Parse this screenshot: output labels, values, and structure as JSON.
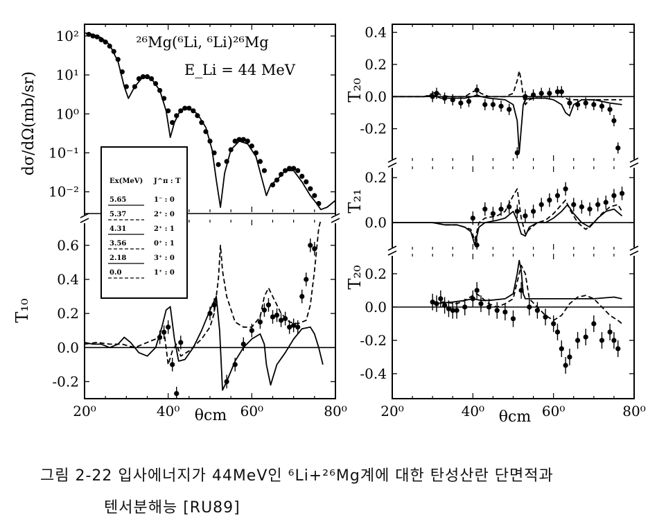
{
  "caption": {
    "line1": "그림 2-22 입사에너지가 44MeV인 ⁶Li+²⁶Mg계에 대한 탄성산란 단면적과",
    "line2": "텐서분해능 [RU89]"
  },
  "chart_data": [
    {
      "id": "cross_section",
      "type": "line",
      "title": "²⁶Mg(⁶Li, ⁶Li)²⁶Mg",
      "subtitle": "E_Li = 44 MeV",
      "ylabel": "dσ/dΩ(mb/sr)",
      "xlim": [
        20,
        80
      ],
      "ylim": [
        0.003,
        200
      ],
      "yscale": "log",
      "ytick_labels": [
        "10²",
        "10¹",
        "10⁰",
        "10⁻¹",
        "10⁻²"
      ],
      "ytick_values": [
        100,
        10,
        1,
        0.1,
        0.01
      ],
      "series": [
        {
          "style": "solid",
          "x": [
            20,
            22,
            24,
            26,
            28,
            29.5,
            30.5,
            32,
            34,
            36,
            38,
            39.5,
            40.5,
            41.5,
            43,
            45,
            47,
            49,
            50.5,
            51.5,
            52.5,
            53.5,
            55,
            57,
            59,
            61,
            62.5,
            63.5,
            64.5,
            66,
            68,
            70,
            72,
            74,
            75.5,
            76.5,
            78,
            80
          ],
          "y": [
            120,
            110,
            90,
            60,
            22,
            5,
            2.5,
            5,
            9,
            8,
            4,
            1.2,
            0.25,
            0.6,
            1.3,
            1.4,
            1.0,
            0.45,
            0.12,
            0.02,
            0.004,
            0.03,
            0.12,
            0.2,
            0.17,
            0.08,
            0.02,
            0.008,
            0.015,
            0.02,
            0.035,
            0.035,
            0.018,
            0.008,
            0.005,
            0.0035,
            0.004,
            0.006
          ]
        },
        {
          "style": "points",
          "x": [
            21,
            22,
            23,
            24,
            25,
            26,
            27,
            28,
            29,
            30,
            32,
            33,
            34,
            35,
            36,
            37,
            38,
            39,
            40,
            41,
            42,
            43,
            44,
            45,
            46,
            47,
            48,
            49,
            50,
            51,
            52,
            54,
            55,
            56,
            57,
            58,
            59,
            60,
            61,
            62,
            63,
            65,
            66,
            67,
            68,
            69,
            70,
            71,
            72,
            73,
            74,
            75,
            76
          ],
          "y": [
            110,
            100,
            95,
            80,
            70,
            55,
            40,
            25,
            12,
            5,
            5,
            8,
            9,
            9,
            8,
            6,
            4,
            2.5,
            1.2,
            0.6,
            0.9,
            1.2,
            1.4,
            1.4,
            1.2,
            0.9,
            0.6,
            0.35,
            0.2,
            0.1,
            0.05,
            0.06,
            0.12,
            0.2,
            0.22,
            0.22,
            0.2,
            0.15,
            0.1,
            0.06,
            0.035,
            0.015,
            0.02,
            0.028,
            0.035,
            0.04,
            0.04,
            0.035,
            0.025,
            0.018,
            0.012,
            0.008,
            0.005
          ]
        }
      ]
    },
    {
      "id": "legend_table",
      "type": "table",
      "columns": [
        "Ex(MeV)",
        "J^π : T"
      ],
      "rows": [
        [
          "5.65",
          "1⁻ : 0"
        ],
        [
          "5.37",
          "2⁺ : 0"
        ],
        [
          "4.31",
          "2⁺ : 1"
        ],
        [
          "3.56",
          "0⁺ : 1"
        ],
        [
          "2.18",
          "3⁺ : 0"
        ],
        [
          "0.0",
          "1⁺ : 0"
        ]
      ]
    },
    {
      "id": "T10",
      "type": "line",
      "ylabel": "T₁₀",
      "xlabel": "θcm",
      "xlim": [
        20,
        80
      ],
      "ylim": [
        -0.3,
        0.75
      ],
      "ytick_labels": [
        "0.6",
        "0.4",
        "0.2",
        "0.0",
        "-0.2"
      ],
      "ytick_values": [
        0.6,
        0.4,
        0.2,
        0.0,
        -0.2
      ],
      "xtick_labels": [
        "20⁰",
        "40⁰",
        "60⁰",
        "80⁰"
      ],
      "xtick_values": [
        20,
        40,
        60,
        80
      ],
      "series": [
        {
          "style": "solid",
          "x": [
            20,
            22,
            24,
            26,
            28,
            29.5,
            31,
            33,
            35,
            37,
            38.5,
            39.5,
            40.5,
            41.5,
            42.5,
            44,
            46,
            48,
            50,
            51.5,
            52.3,
            53,
            54,
            56,
            58,
            60,
            62,
            63,
            63.5,
            64.5,
            66,
            68,
            70,
            72,
            74,
            75,
            76,
            77
          ],
          "y": [
            0.03,
            0.02,
            0.02,
            0.0,
            0.02,
            0.06,
            0.03,
            -0.03,
            -0.05,
            0.0,
            0.12,
            0.22,
            0.24,
            0.05,
            -0.08,
            -0.07,
            0.0,
            0.1,
            0.22,
            0.3,
            0.1,
            -0.25,
            -0.2,
            -0.08,
            0.0,
            0.05,
            0.08,
            0.02,
            -0.1,
            -0.22,
            -0.1,
            -0.03,
            0.05,
            0.11,
            0.12,
            0.08,
            0.0,
            -0.1
          ]
        },
        {
          "style": "dashed",
          "x": [
            20,
            23,
            26,
            29,
            32,
            35,
            37,
            39,
            40,
            41,
            42,
            43,
            45,
            48,
            50,
            51,
            52,
            52.5,
            53,
            54,
            56,
            58,
            60,
            62,
            63,
            64,
            65,
            67,
            69,
            71,
            73,
            74,
            75,
            76,
            77
          ],
          "y": [
            0.02,
            0.03,
            0.02,
            0.02,
            0.0,
            0.03,
            0.05,
            0.1,
            -0.1,
            -0.02,
            0.02,
            -0.05,
            -0.02,
            0.05,
            0.12,
            0.2,
            0.4,
            0.6,
            0.45,
            0.3,
            0.15,
            0.12,
            0.12,
            0.18,
            0.3,
            0.35,
            0.3,
            0.2,
            0.15,
            0.14,
            0.16,
            0.25,
            0.45,
            0.7,
            0.8
          ]
        },
        {
          "style": "points",
          "x": [
            38,
            39,
            40,
            41,
            42,
            43,
            50,
            51,
            54,
            56,
            58,
            60,
            62,
            63,
            64,
            65,
            66,
            67,
            68,
            69,
            70,
            71,
            72,
            73,
            74,
            75
          ],
          "y": [
            0.06,
            0.09,
            0.12,
            -0.1,
            -0.27,
            0.03,
            0.2,
            0.25,
            -0.2,
            -0.1,
            0.02,
            0.1,
            0.15,
            0.22,
            0.25,
            0.18,
            0.19,
            0.16,
            0.17,
            0.12,
            0.13,
            0.12,
            0.3,
            0.4,
            0.6,
            0.58
          ]
        }
      ]
    },
    {
      "id": "T20_upper",
      "type": "line",
      "ylabel": "T₂₀",
      "xlim": [
        20,
        80
      ],
      "ylim": [
        -0.4,
        0.45
      ],
      "ytick_labels": [
        "0.4",
        "0.2",
        "0.0",
        "-0.2"
      ],
      "ytick_values": [
        0.4,
        0.2,
        0.0,
        -0.2
      ],
      "series": [
        {
          "style": "solid",
          "x": [
            20,
            24,
            28,
            30,
            31,
            32,
            34,
            38,
            40,
            41,
            42,
            44,
            48,
            50,
            51,
            51.5,
            52,
            52.5,
            53,
            54,
            56,
            58,
            60,
            62,
            63,
            64,
            65,
            67,
            70,
            74,
            77
          ],
          "y": [
            0.0,
            0.0,
            0.0,
            0.01,
            0.0,
            -0.01,
            -0.01,
            -0.01,
            0.0,
            0.01,
            0.0,
            -0.01,
            -0.02,
            -0.05,
            -0.15,
            -0.35,
            -0.2,
            -0.05,
            -0.02,
            -0.01,
            -0.01,
            -0.01,
            -0.02,
            -0.05,
            -0.1,
            -0.12,
            -0.05,
            -0.02,
            -0.02,
            -0.04,
            -0.05
          ]
        },
        {
          "style": "dashed",
          "x": [
            20,
            24,
            28,
            30,
            31,
            32,
            34,
            38,
            40,
            41,
            42,
            44,
            48,
            50,
            51,
            51.5,
            52,
            52.5,
            53,
            54,
            56,
            58,
            60,
            62,
            64,
            66,
            70,
            74,
            77
          ],
          "y": [
            0.0,
            0.0,
            0.0,
            0.02,
            0.03,
            0.01,
            0.0,
            0.0,
            0.03,
            0.04,
            0.02,
            0.0,
            0.0,
            0.02,
            0.1,
            0.16,
            0.1,
            0.0,
            -0.05,
            -0.02,
            0.0,
            0.0,
            0.0,
            0.0,
            -0.02,
            -0.02,
            -0.02,
            -0.02,
            -0.02
          ]
        },
        {
          "style": "points",
          "x": [
            30,
            31,
            33,
            35,
            37,
            39,
            41,
            43,
            45,
            47,
            49,
            51,
            53,
            55,
            57,
            59,
            61,
            62,
            64,
            66,
            68,
            70,
            72,
            74,
            75,
            76
          ],
          "y": [
            0.0,
            0.02,
            -0.01,
            -0.02,
            -0.04,
            -0.03,
            0.04,
            -0.05,
            -0.05,
            -0.06,
            -0.08,
            -0.35,
            0.0,
            0.01,
            0.02,
            0.02,
            0.03,
            0.03,
            -0.04,
            -0.05,
            -0.04,
            -0.05,
            -0.06,
            -0.08,
            -0.15,
            -0.32
          ]
        }
      ]
    },
    {
      "id": "T21",
      "type": "line",
      "ylabel": "T₂₁",
      "xlim": [
        20,
        80
      ],
      "ylim": [
        -0.12,
        0.25
      ],
      "ytick_labels": [
        "0.2",
        "0.0"
      ],
      "ytick_values": [
        0.2,
        0.0
      ],
      "series": [
        {
          "style": "solid",
          "x": [
            20,
            25,
            30,
            33,
            36,
            38,
            39.5,
            40.5,
            41.5,
            43,
            46,
            48,
            50,
            51,
            52,
            53,
            54,
            56,
            58,
            60,
            62,
            63.5,
            65,
            67,
            69,
            71,
            73,
            75,
            77
          ],
          "y": [
            0.0,
            0.0,
            0.0,
            -0.01,
            -0.01,
            -0.02,
            -0.04,
            -0.1,
            -0.02,
            0.0,
            0.01,
            0.02,
            0.05,
            0.01,
            -0.05,
            -0.06,
            -0.02,
            0.0,
            0.0,
            0.02,
            0.05,
            0.08,
            0.04,
            0.0,
            -0.02,
            0.02,
            0.05,
            0.06,
            0.03
          ]
        },
        {
          "style": "dashed",
          "x": [
            20,
            25,
            30,
            33,
            36,
            38,
            39.5,
            40.5,
            41.5,
            43,
            46,
            48,
            50,
            51,
            52,
            53,
            54,
            56,
            58,
            60,
            62,
            63,
            64,
            66,
            68,
            70,
            72,
            74,
            76,
            77
          ],
          "y": [
            0.0,
            0.0,
            0.0,
            -0.01,
            -0.01,
            -0.02,
            -0.03,
            -0.08,
            0.0,
            0.02,
            0.03,
            0.05,
            0.12,
            0.15,
            0.02,
            -0.05,
            -0.03,
            0.0,
            0.01,
            0.04,
            0.08,
            0.1,
            0.06,
            0.0,
            -0.03,
            0.0,
            0.04,
            0.07,
            0.08,
            0.05
          ]
        },
        {
          "style": "points",
          "x": [
            40,
            41,
            43,
            45,
            47,
            49,
            51,
            53,
            55,
            57,
            59,
            61,
            63,
            65,
            67,
            69,
            71,
            73,
            75,
            77
          ],
          "y": [
            0.02,
            -0.1,
            0.06,
            0.04,
            0.06,
            0.07,
            0.05,
            0.03,
            0.05,
            0.08,
            0.1,
            0.12,
            0.15,
            0.08,
            0.07,
            0.06,
            0.08,
            0.09,
            0.12,
            0.13
          ]
        }
      ]
    },
    {
      "id": "T20_lower",
      "type": "line",
      "ylabel": "T₂₀",
      "xlabel": "θcm",
      "xlim": [
        20,
        80
      ],
      "ylim": [
        -0.55,
        0.32
      ],
      "ytick_labels": [
        "0.2",
        "0.0",
        "-0.2",
        "-0.4"
      ],
      "ytick_values": [
        0.2,
        0.0,
        -0.2,
        -0.4
      ],
      "xtick_labels": [
        "20⁰",
        "40⁰",
        "60⁰",
        "80⁰"
      ],
      "xtick_values": [
        20,
        40,
        60,
        80
      ],
      "series": [
        {
          "style": "solid",
          "x": [
            30,
            35,
            38,
            40,
            42,
            44,
            48,
            50,
            51,
            51.5,
            52,
            52.5,
            53,
            54,
            56,
            60,
            65,
            70,
            75,
            77
          ],
          "y": [
            0.02,
            0.03,
            0.04,
            0.05,
            0.04,
            0.04,
            0.05,
            0.08,
            0.2,
            0.28,
            0.22,
            0.08,
            0.05,
            0.05,
            0.05,
            0.05,
            0.05,
            0.05,
            0.06,
            0.05
          ]
        },
        {
          "style": "dashed",
          "x": [
            30,
            33,
            36,
            38,
            40,
            41,
            42,
            44,
            46,
            48,
            50,
            51,
            52,
            53,
            54,
            56,
            58,
            60,
            62,
            64,
            66,
            68,
            70,
            72,
            74,
            76,
            77
          ],
          "y": [
            0.03,
            0.03,
            0.02,
            0.04,
            0.07,
            0.08,
            0.06,
            0.02,
            0.0,
            0.02,
            0.05,
            0.15,
            0.25,
            0.2,
            0.05,
            0.0,
            -0.05,
            -0.08,
            -0.05,
            0.02,
            0.06,
            0.07,
            0.05,
            0.0,
            -0.05,
            -0.08,
            -0.1
          ]
        },
        {
          "style": "points",
          "x": [
            30,
            31,
            32,
            33,
            34,
            35,
            36,
            38,
            40,
            41,
            42,
            44,
            46,
            48,
            50,
            52,
            54,
            56,
            58,
            60,
            61,
            62,
            63,
            64,
            66,
            68,
            70,
            72,
            74,
            75,
            76
          ],
          "y": [
            0.03,
            0.02,
            0.05,
            0.01,
            -0.01,
            -0.02,
            -0.02,
            0.0,
            0.05,
            0.1,
            0.02,
            0.0,
            -0.02,
            -0.03,
            -0.07,
            0.1,
            0.0,
            -0.02,
            -0.06,
            -0.1,
            -0.15,
            -0.25,
            -0.35,
            -0.3,
            -0.2,
            -0.18,
            -0.1,
            -0.2,
            -0.15,
            -0.2,
            -0.25
          ]
        }
      ]
    }
  ]
}
